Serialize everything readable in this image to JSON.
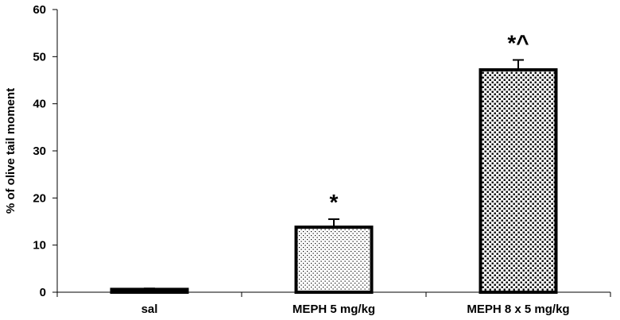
{
  "chart_data": {
    "type": "bar",
    "title": "",
    "xlabel": "",
    "ylabel": "% of olive tail moment",
    "ylim": [
      0,
      60
    ],
    "yticks": [
      0,
      10,
      20,
      30,
      40,
      50,
      60
    ],
    "grid": false,
    "legend": "none",
    "categories": [
      "sal",
      "MEPH 5 mg/kg",
      "MEPH 8 x 5 mg/kg"
    ],
    "values": [
      0.6,
      13.8,
      47.2
    ],
    "errors": [
      0.2,
      1.7,
      2.1
    ],
    "annotations": [
      "",
      "*",
      "*^"
    ],
    "patterns": [
      "dots-sparse",
      "dots-fine",
      "dots-dense"
    ],
    "bar_fill": "#ffffff",
    "bar_edge": "#000000"
  }
}
